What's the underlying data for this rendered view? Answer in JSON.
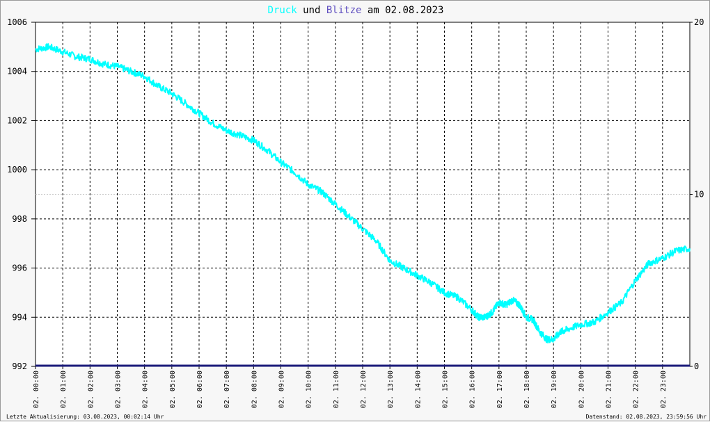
{
  "title": {
    "word1": "Druck",
    "word2": "und",
    "word3": "Blitze",
    "word4": "am 02.08.2023",
    "color_druck": "#00ffff",
    "color_blitze": "#5f4fc0"
  },
  "footer": {
    "left": "Letzte Aktualisierung: 03.08.2023, 00:02:14 Uhr",
    "right": "Datenstand: 02.08.2023, 23:59:56 Uhr"
  },
  "chart_data": {
    "type": "line",
    "title": "Druck und Blitze am 02.08.2023",
    "grid": true,
    "y_left": {
      "range": [
        992,
        1006
      ],
      "ticks": [
        "992",
        "994",
        "996",
        "998",
        "1000",
        "1002",
        "1004",
        "1006"
      ]
    },
    "y_right": {
      "range": [
        0,
        20
      ],
      "ticks": [
        "0",
        "10",
        "20"
      ]
    },
    "x_hours": [
      0,
      1,
      2,
      3,
      4,
      5,
      6,
      7,
      8,
      9,
      10,
      11,
      12,
      13,
      14,
      15,
      16,
      17,
      18,
      19,
      20,
      21,
      22,
      23
    ],
    "x_tick_labels": [
      "02. 00:00",
      "02. 01:00",
      "02. 02:00",
      "02. 03:00",
      "02. 04:00",
      "02. 05:00",
      "02. 06:00",
      "02. 07:00",
      "02. 08:00",
      "02. 09:00",
      "02. 10:00",
      "02. 11:00",
      "02. 12:00",
      "02. 13:00",
      "02. 14:00",
      "02. 15:00",
      "02. 16:00",
      "02. 17:00",
      "02. 18:00",
      "02. 19:00",
      "02. 20:00",
      "02. 21:00",
      "02. 22:00",
      "02. 23:00"
    ],
    "series": [
      {
        "name": "Druck",
        "color": "#00ffff",
        "axis": "left",
        "x": [
          0,
          0.5,
          1,
          1.5,
          2,
          2.5,
          3,
          3.5,
          4,
          4.5,
          5,
          5.5,
          6,
          6.5,
          7,
          7.5,
          8,
          8.5,
          9,
          9.5,
          10,
          10.5,
          11,
          11.5,
          12,
          12.5,
          13,
          13.5,
          14,
          14.5,
          15,
          15.5,
          16,
          16.25,
          16.5,
          16.75,
          17,
          17.25,
          17.5,
          17.75,
          18,
          18.25,
          18.5,
          18.75,
          19,
          19.25,
          19.5,
          20,
          20.5,
          21,
          21.5,
          22,
          22.5,
          23,
          23.5,
          24
        ],
        "y": [
          1004.9,
          1005.0,
          1004.8,
          1004.6,
          1004.5,
          1004.3,
          1004.2,
          1004.0,
          1003.8,
          1003.4,
          1003.1,
          1002.7,
          1002.3,
          1001.9,
          1001.6,
          1001.4,
          1001.2,
          1000.8,
          1000.3,
          999.9,
          999.4,
          999.1,
          998.6,
          998.1,
          997.6,
          997.1,
          996.3,
          996.0,
          995.7,
          995.4,
          995.0,
          994.8,
          994.3,
          994.0,
          994.0,
          994.2,
          994.6,
          994.5,
          994.7,
          994.5,
          994.0,
          993.9,
          993.4,
          993.1,
          993.1,
          993.4,
          993.5,
          993.7,
          993.8,
          994.2,
          994.6,
          995.5,
          996.2,
          996.4,
          996.7,
          996.8
        ]
      },
      {
        "name": "Blitze",
        "color": "#1a1a7a",
        "axis": "right",
        "x": [
          0,
          24
        ],
        "y": [
          0,
          0
        ]
      }
    ]
  }
}
